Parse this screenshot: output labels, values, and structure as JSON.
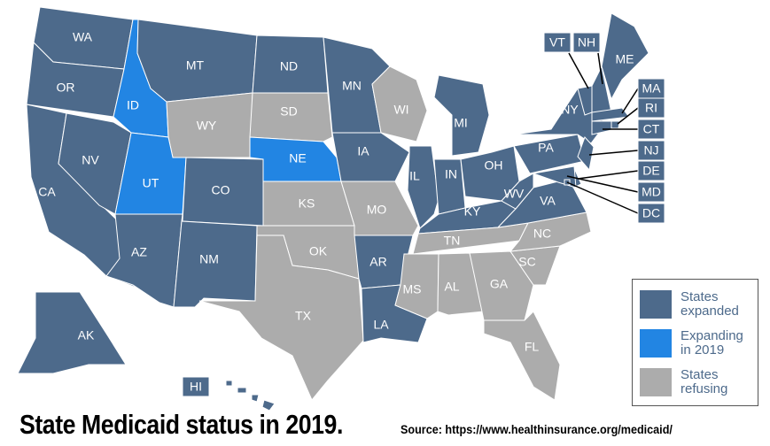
{
  "title": "State Medicaid status in 2019.",
  "source": "Source: https://www.healthinsurance.org/medicaid/",
  "legend": [
    {
      "label": "States expanded",
      "color": "#4d6a8b"
    },
    {
      "label": "Expanding in 2019",
      "color": "#2285e3"
    },
    {
      "label": "States refusing",
      "color": "#acacac"
    }
  ],
  "states": [
    {
      "abbr": "WA",
      "status": 0
    },
    {
      "abbr": "OR",
      "status": 0
    },
    {
      "abbr": "CA",
      "status": 0
    },
    {
      "abbr": "NV",
      "status": 0
    },
    {
      "abbr": "ID",
      "status": 1
    },
    {
      "abbr": "MT",
      "status": 0
    },
    {
      "abbr": "WY",
      "status": 2
    },
    {
      "abbr": "UT",
      "status": 1
    },
    {
      "abbr": "CO",
      "status": 0
    },
    {
      "abbr": "AZ",
      "status": 0
    },
    {
      "abbr": "NM",
      "status": 0
    },
    {
      "abbr": "ND",
      "status": 0
    },
    {
      "abbr": "SD",
      "status": 2
    },
    {
      "abbr": "NE",
      "status": 1
    },
    {
      "abbr": "KS",
      "status": 2
    },
    {
      "abbr": "OK",
      "status": 2
    },
    {
      "abbr": "TX",
      "status": 2
    },
    {
      "abbr": "MN",
      "status": 0
    },
    {
      "abbr": "IA",
      "status": 0
    },
    {
      "abbr": "MO",
      "status": 2
    },
    {
      "abbr": "AR",
      "status": 0
    },
    {
      "abbr": "LA",
      "status": 0
    },
    {
      "abbr": "WI",
      "status": 2
    },
    {
      "abbr": "IL",
      "status": 0
    },
    {
      "abbr": "MI",
      "status": 0
    },
    {
      "abbr": "IN",
      "status": 0
    },
    {
      "abbr": "OH",
      "status": 0
    },
    {
      "abbr": "KY",
      "status": 0
    },
    {
      "abbr": "TN",
      "status": 2
    },
    {
      "abbr": "MS",
      "status": 2
    },
    {
      "abbr": "AL",
      "status": 2
    },
    {
      "abbr": "GA",
      "status": 2
    },
    {
      "abbr": "FL",
      "status": 2
    },
    {
      "abbr": "SC",
      "status": 2
    },
    {
      "abbr": "NC",
      "status": 2
    },
    {
      "abbr": "VA",
      "status": 0
    },
    {
      "abbr": "WV",
      "status": 0
    },
    {
      "abbr": "PA",
      "status": 0
    },
    {
      "abbr": "NY",
      "status": 0
    },
    {
      "abbr": "VT",
      "status": 0
    },
    {
      "abbr": "NH",
      "status": 0
    },
    {
      "abbr": "ME",
      "status": 0
    },
    {
      "abbr": "MA",
      "status": 0
    },
    {
      "abbr": "RI",
      "status": 0
    },
    {
      "abbr": "CT",
      "status": 0
    },
    {
      "abbr": "NJ",
      "status": 0
    },
    {
      "abbr": "DE",
      "status": 0
    },
    {
      "abbr": "MD",
      "status": 0
    },
    {
      "abbr": "DC",
      "status": 0
    },
    {
      "abbr": "AK",
      "status": 0
    },
    {
      "abbr": "HI",
      "status": 0
    }
  ]
}
